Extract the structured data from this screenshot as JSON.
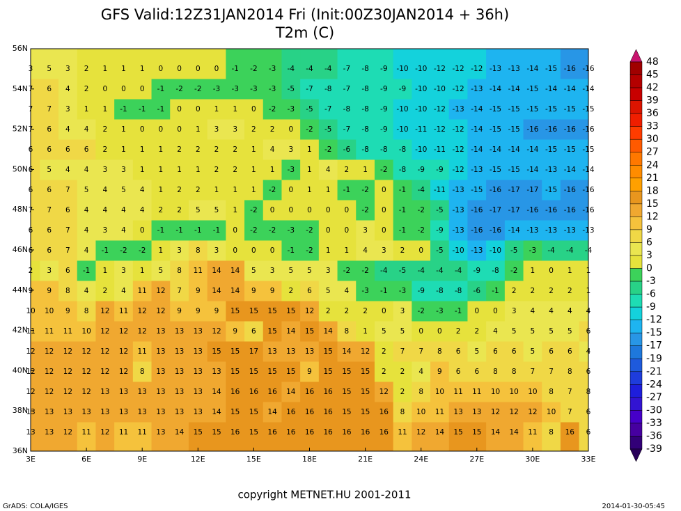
{
  "header": {
    "title": "GFS  Valid:12Z31JAN2014 Fri  (Init:00Z30JAN2014  +  36h)",
    "subtitle": "T2m  (C)"
  },
  "map": {
    "lat_labels": [
      "56N",
      "54N",
      "52N",
      "50N",
      "48N",
      "46N",
      "44N",
      "42N",
      "40N",
      "38N",
      "36N"
    ],
    "lon_labels": [
      "3E",
      "6E",
      "9E",
      "12E",
      "15E",
      "18E",
      "21E",
      "24E",
      "27E",
      "30E",
      "33E"
    ],
    "rows": [
      [
        3,
        5,
        3,
        2,
        1,
        1,
        1,
        0,
        0,
        0,
        0,
        -1,
        -2,
        -3,
        -4,
        -4,
        -4,
        -7,
        -8,
        -9,
        -10,
        -10,
        -12,
        -12,
        -12,
        -13,
        -13,
        -14,
        -15,
        -16,
        -16
      ],
      [
        7,
        6,
        4,
        2,
        0,
        0,
        0,
        -1,
        -2,
        -2,
        -3,
        -3,
        -3,
        -3,
        -5,
        -7,
        -8,
        -7,
        -8,
        -9,
        -9,
        -10,
        -10,
        -12,
        -13,
        -14,
        -14,
        -15,
        -14,
        -14,
        -14
      ],
      [
        7,
        7,
        3,
        1,
        1,
        -1,
        -1,
        -1,
        0,
        0,
        1,
        1,
        0,
        -2,
        -3,
        -5,
        -7,
        -8,
        -8,
        -9,
        -10,
        -10,
        -12,
        -13,
        -14,
        -15,
        -15,
        -15,
        -15,
        -15,
        -15
      ],
      [
        7,
        6,
        4,
        4,
        2,
        1,
        0,
        0,
        0,
        1,
        3,
        3,
        2,
        2,
        0,
        -2,
        -5,
        -7,
        -8,
        -9,
        -10,
        -11,
        -12,
        -12,
        -14,
        -15,
        -15,
        -16,
        -16,
        -16,
        -16
      ],
      [
        6,
        6,
        6,
        6,
        2,
        1,
        1,
        1,
        2,
        2,
        2,
        2,
        1,
        4,
        3,
        1,
        -2,
        -6,
        -8,
        -8,
        -8,
        -10,
        -11,
        -12,
        -14,
        -14,
        -14,
        -14,
        -15,
        -15,
        -15
      ],
      [
        6,
        5,
        4,
        4,
        3,
        3,
        1,
        1,
        1,
        1,
        2,
        2,
        1,
        1,
        -3,
        1,
        4,
        2,
        1,
        -2,
        -8,
        -9,
        -9,
        -12,
        -13,
        -15,
        -15,
        -14,
        -13,
        -14,
        -14
      ],
      [
        6,
        6,
        7,
        5,
        4,
        5,
        4,
        1,
        2,
        2,
        1,
        1,
        1,
        -2,
        0,
        1,
        1,
        -1,
        -2,
        0,
        -1,
        -4,
        -11,
        -13,
        -15,
        -16,
        -17,
        -17,
        -15,
        -16,
        -16
      ],
      [
        7,
        7,
        6,
        4,
        4,
        4,
        4,
        2,
        2,
        5,
        5,
        1,
        -2,
        0,
        0,
        0,
        0,
        0,
        -2,
        0,
        -1,
        -2,
        -5,
        -13,
        -16,
        -17,
        -17,
        -16,
        -16,
        -16,
        -16
      ],
      [
        6,
        6,
        7,
        4,
        3,
        4,
        0,
        -1,
        -1,
        -1,
        -1,
        0,
        -2,
        -2,
        -3,
        -2,
        0,
        0,
        3,
        0,
        -1,
        -2,
        -9,
        -13,
        -16,
        -16,
        -14,
        -13,
        -13,
        -13,
        -13
      ],
      [
        6,
        6,
        7,
        4,
        -1,
        -2,
        -2,
        1,
        3,
        8,
        3,
        0,
        0,
        0,
        -1,
        -2,
        1,
        1,
        4,
        3,
        2,
        0,
        -5,
        -10,
        -13,
        -10,
        -5,
        -3,
        -4,
        -4,
        -4
      ],
      [
        2,
        3,
        6,
        -1,
        1,
        3,
        1,
        5,
        8,
        11,
        14,
        14,
        5,
        3,
        5,
        5,
        3,
        -2,
        -2,
        -4,
        -5,
        -4,
        -4,
        -4,
        -9,
        -8,
        -2,
        1,
        0,
        1,
        1
      ],
      [
        9,
        9,
        8,
        4,
        2,
        4,
        11,
        12,
        7,
        9,
        14,
        14,
        9,
        9,
        2,
        6,
        5,
        4,
        -3,
        -1,
        -3,
        -9,
        -8,
        -8,
        -6,
        -1,
        2,
        2,
        2,
        2,
        1
      ],
      [
        10,
        10,
        9,
        8,
        12,
        11,
        12,
        12,
        9,
        9,
        9,
        15,
        15,
        15,
        15,
        12,
        2,
        2,
        2,
        0,
        3,
        -2,
        -3,
        -1,
        0,
        0,
        3,
        4,
        4,
        4,
        4
      ],
      [
        11,
        11,
        11,
        10,
        12,
        12,
        12,
        13,
        13,
        13,
        12,
        9,
        6,
        15,
        14,
        15,
        14,
        8,
        1,
        5,
        5,
        0,
        0,
        2,
        2,
        4,
        5,
        5,
        5,
        5,
        6
      ],
      [
        12,
        12,
        12,
        12,
        12,
        12,
        11,
        13,
        13,
        13,
        15,
        15,
        17,
        13,
        13,
        13,
        15,
        14,
        12,
        2,
        7,
        7,
        8,
        6,
        5,
        6,
        6,
        5,
        6,
        6,
        4
      ],
      [
        12,
        12,
        12,
        12,
        12,
        12,
        8,
        13,
        13,
        13,
        13,
        15,
        15,
        15,
        15,
        9,
        15,
        15,
        15,
        2,
        2,
        4,
        9,
        6,
        6,
        8,
        8,
        7,
        7,
        8,
        6
      ],
      [
        12,
        12,
        12,
        12,
        13,
        13,
        13,
        13,
        13,
        13,
        14,
        16,
        16,
        16,
        14,
        16,
        16,
        15,
        15,
        12,
        2,
        8,
        10,
        11,
        11,
        10,
        10,
        10,
        8,
        7,
        8
      ],
      [
        13,
        13,
        13,
        13,
        13,
        13,
        13,
        13,
        13,
        13,
        14,
        15,
        15,
        14,
        16,
        16,
        16,
        15,
        15,
        16,
        8,
        10,
        11,
        13,
        13,
        12,
        12,
        12,
        10,
        7,
        6
      ],
      [
        13,
        13,
        12,
        11,
        12,
        11,
        11,
        13,
        14,
        15,
        15,
        16,
        15,
        16,
        16,
        16,
        16,
        16,
        16,
        16,
        11,
        12,
        14,
        15,
        15,
        14,
        14,
        11,
        8,
        16,
        6
      ]
    ]
  },
  "colorbar": {
    "levels": [
      48,
      45,
      42,
      39,
      36,
      33,
      30,
      27,
      24,
      21,
      18,
      15,
      12,
      9,
      6,
      3,
      0,
      -3,
      -6,
      -9,
      -12,
      -15,
      -17,
      -19,
      -21,
      -24,
      -27,
      -30,
      -33,
      -36,
      -39
    ],
    "colors": [
      "#c8146e",
      "#a00000",
      "#b40000",
      "#c80000",
      "#dc1400",
      "#f01e00",
      "#ff3c00",
      "#ff5a00",
      "#ff7800",
      "#ff8c00",
      "#ffa000",
      "#e8961e",
      "#f0a830",
      "#f5c23c",
      "#f0d846",
      "#eae650",
      "#e6e23c",
      "#3cd25a",
      "#28d287",
      "#1edcb4",
      "#14d2dc",
      "#1eb4f0",
      "#2896e6",
      "#1e78dc",
      "#1e5adc",
      "#1e3cdc",
      "#1e1edc",
      "#3214d2",
      "#4600c8",
      "#4600a0",
      "#320078",
      "#28005a"
    ]
  },
  "footer": {
    "copyright": "copyright  METNET.HU  2001-2011",
    "left": "GrADS: COLA/IGES",
    "right": "2014-01-30-05:45"
  }
}
